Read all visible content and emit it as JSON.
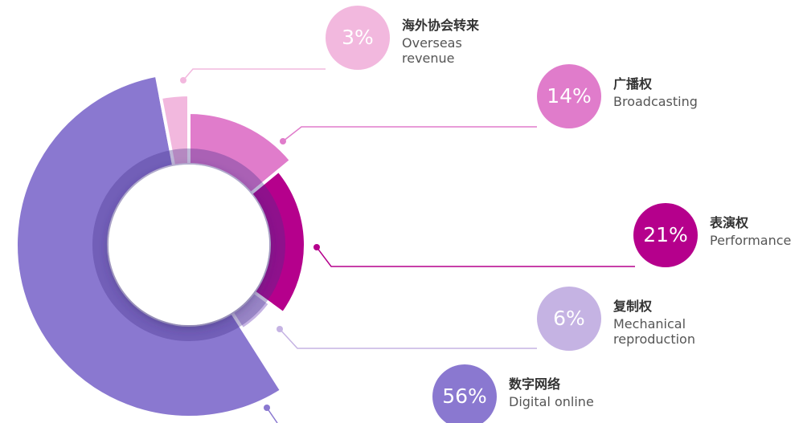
{
  "chart_data": {
    "type": "pie",
    "categories": [
      {
        "cn": "广播权",
        "en": "Broadcasting"
      },
      {
        "cn": "表演权",
        "en": "Performance"
      },
      {
        "cn": "复制权",
        "en": "Mechanical reproduction"
      },
      {
        "cn": "数字网络",
        "en": "Digital online"
      },
      {
        "cn": "海外协会转来",
        "en": "Overseas revenue"
      }
    ],
    "values": [
      14,
      21,
      6,
      56,
      3
    ],
    "value_labels": [
      "14%",
      "21%",
      "6%",
      "56%",
      "3%"
    ],
    "colors": [
      "#e07ccb",
      "#b5008c",
      "#c5b3e3",
      "#8a78d0",
      "#f2b8de"
    ]
  }
}
